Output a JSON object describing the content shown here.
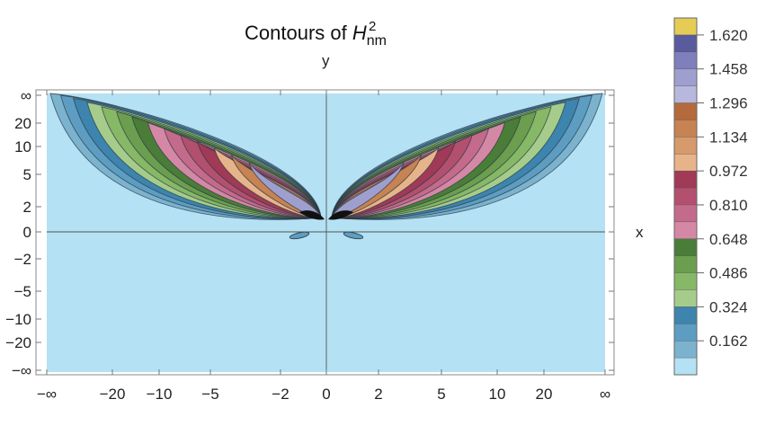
{
  "chart_data": {
    "type": "contour",
    "title_prefix": "Contours of ",
    "title_symbol": "H",
    "title_sub": "nm",
    "title_sup": "2",
    "xlabel": "x",
    "ylabel": "y",
    "x_ticks": [
      "−∞",
      "−20",
      "−10",
      "−5",
      "−2",
      "0",
      "2",
      "5",
      "10",
      "20",
      "∞"
    ],
    "y_ticks": [
      "∞",
      "20",
      "10",
      "5",
      "2",
      "0",
      "−2",
      "−5",
      "−10",
      "−20",
      "−∞"
    ],
    "colorbar": {
      "labels": [
        "1.620",
        "1.458",
        "1.296",
        "1.134",
        "0.972",
        "0.810",
        "0.648",
        "0.486",
        "0.324",
        "0.162"
      ],
      "bands": [
        "#b4e1f4",
        "#7bb3cf",
        "#5d9dc2",
        "#3d84ae",
        "#a6cc8b",
        "#86b866",
        "#6b9e4f",
        "#4a7d38",
        "#d488a6",
        "#c46a8a",
        "#b3506f",
        "#a03a57",
        "#e7b48a",
        "#d69a6c",
        "#c78352",
        "#b46a3c",
        "#b8b8de",
        "#9f9fcf",
        "#7f7fbb",
        "#5a5a9f",
        "#e5cc55"
      ]
    },
    "background_color": "#b4e1f4",
    "lobe_colors": [
      "#7bb3cf",
      "#5d9dc2",
      "#3d84ae",
      "#a6cc8b",
      "#86b866",
      "#6b9e4f",
      "#4a7d38",
      "#d488a6",
      "#c46a8a",
      "#b3506f",
      "#a03a57",
      "#e7b48a",
      "#c78352",
      "#9f9fcf"
    ]
  }
}
